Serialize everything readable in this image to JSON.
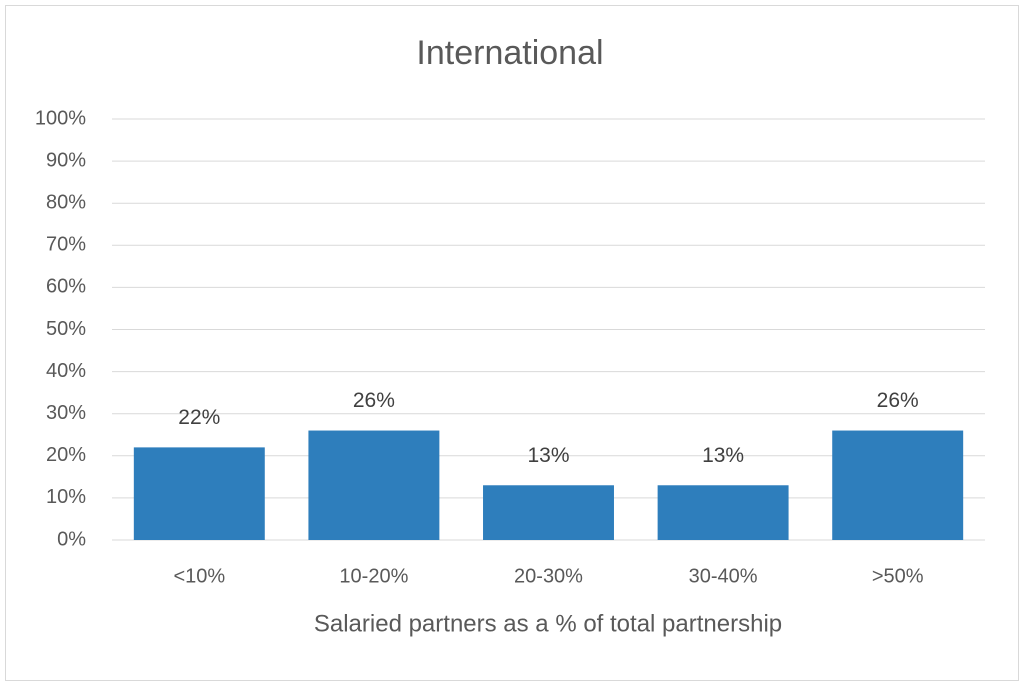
{
  "chart_data": {
    "type": "bar",
    "title": "International",
    "x_label": "Salaried partners as a % of total partnership",
    "categories": [
      "<10%",
      "10-20%",
      "20-30%",
      "30-40%",
      ">50%"
    ],
    "values": [
      22,
      26,
      13,
      13,
      26
    ],
    "value_labels": [
      "22%",
      "26%",
      "13%",
      "13%",
      "26%"
    ],
    "color": "#2e7ebc",
    "ylim": [
      0,
      100
    ],
    "yticks": [
      {
        "value": 0,
        "label": "0%"
      },
      {
        "value": 10,
        "label": "10%"
      },
      {
        "value": 20,
        "label": "20%"
      },
      {
        "value": 30,
        "label": "30%"
      },
      {
        "value": 40,
        "label": "40%"
      },
      {
        "value": 50,
        "label": "50%"
      },
      {
        "value": 60,
        "label": "60%"
      },
      {
        "value": 70,
        "label": "70%"
      },
      {
        "value": 80,
        "label": "80%"
      },
      {
        "value": 90,
        "label": "90%"
      },
      {
        "value": 100,
        "label": "100%"
      }
    ],
    "grid": true
  }
}
